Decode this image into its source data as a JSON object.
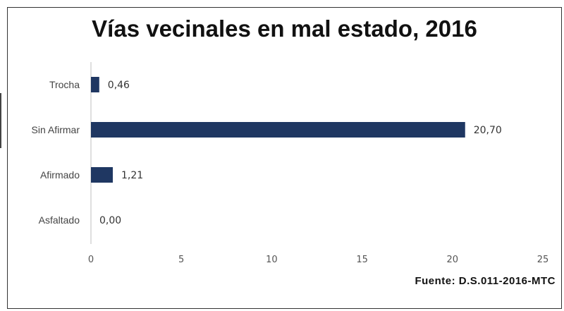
{
  "title": "Vías vecinales en mal estado, 2016",
  "source": "Fuente: D.S.011-2016-MTC",
  "colors": {
    "bar": "#1f3762",
    "axis": "#bfbfbf"
  },
  "chart_data": {
    "type": "bar",
    "orientation": "horizontal",
    "title": "Vías vecinales en mal estado, 2016",
    "categories": [
      "Trocha",
      "Sin Afirmar",
      "Afirmado",
      "Asfaltado"
    ],
    "values": [
      0.46,
      20.7,
      1.21,
      0.0
    ],
    "value_labels": [
      "0,46",
      "20,70",
      "1,21",
      "0,00"
    ],
    "xlim": [
      0,
      25
    ],
    "x_ticks": [
      "0",
      "5",
      "10",
      "15",
      "20",
      "25"
    ],
    "xlabel": "",
    "ylabel": "",
    "grid": false,
    "legend": "none"
  }
}
